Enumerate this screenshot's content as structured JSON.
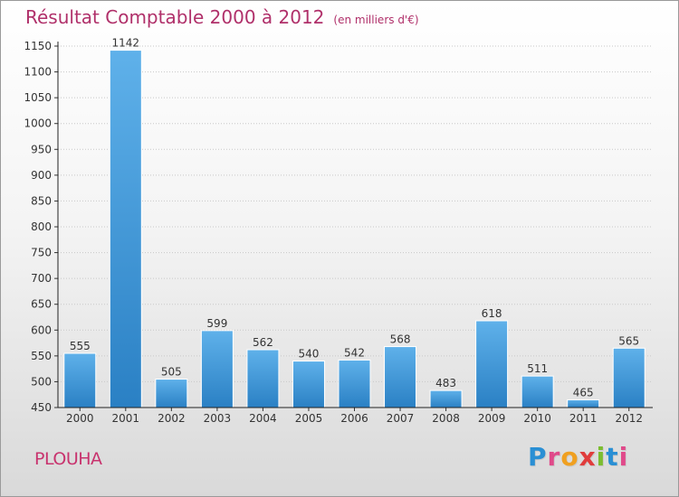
{
  "chart_data": {
    "type": "bar",
    "title": "Résultat Comptable 2000 à 2012",
    "unit_note": "(en milliers d'€)",
    "categories": [
      "2000",
      "2001",
      "2002",
      "2003",
      "2004",
      "2005",
      "2006",
      "2007",
      "2008",
      "2009",
      "2010",
      "2011",
      "2012"
    ],
    "values": [
      555,
      1142,
      505,
      599,
      562,
      540,
      542,
      568,
      483,
      618,
      511,
      465,
      565
    ],
    "ylim": [
      450,
      1150
    ],
    "yticks": [
      450,
      500,
      550,
      600,
      650,
      700,
      750,
      800,
      850,
      900,
      950,
      1000,
      1050,
      1100,
      1150
    ],
    "grid": true,
    "bar_color_top": "#5fb1ea",
    "bar_color_bottom": "#2a80c4"
  },
  "commune": "PLOUHA",
  "logo": {
    "text": "Proxiti",
    "colors": [
      "#2a8fd4",
      "#e04a8a",
      "#f0a020",
      "#e03c3c",
      "#7bbd2f",
      "#2a8fd4",
      "#e04a8a"
    ]
  }
}
